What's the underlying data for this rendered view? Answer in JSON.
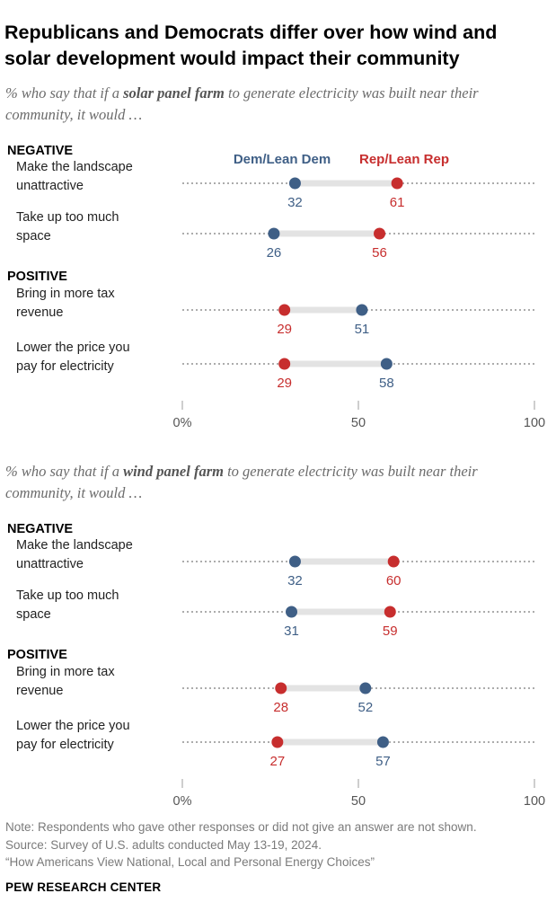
{
  "title": "Republicans and Democrats differ over how wind and solar development would impact their community",
  "colors": {
    "dem": "#3f5f86",
    "rep": "#c72e2e",
    "bar": "#e3e3e3",
    "dots": "#7a7a7a",
    "axis": "#bdbdbd",
    "label": "#222222"
  },
  "note_lines": [
    "Note: Respondents who gave other responses or did not give an answer are not shown.",
    "Source: Survey of U.S. adults conducted May 13-19, 2024.",
    "“How Americans View National, Local and Personal Energy Choices”"
  ],
  "footer": "PEW RESEARCH CENTER",
  "chart_data": [
    {
      "type": "dot",
      "subtitle_pre": "% who say that if a ",
      "subtitle_bold": "solar panel farm",
      "subtitle_post": " to generate electricity was built near their community, it would …",
      "legend": {
        "dem": "Dem/Lean Dem",
        "rep": "Rep/Lean Rep"
      },
      "xlim": [
        0,
        100
      ],
      "ticks": [
        "0%",
        "50",
        "100"
      ],
      "tick_values": [
        0,
        50,
        100
      ],
      "groups": [
        {
          "label": "NEGATIVE",
          "items": [
            {
              "lines": [
                "Make the landscape",
                "unattractive"
              ],
              "dem": 32,
              "rep": 61
            },
            {
              "lines": [
                "Take up too much",
                "space"
              ],
              "dem": 26,
              "rep": 56
            }
          ]
        },
        {
          "label": "POSITIVE",
          "items": [
            {
              "lines": [
                "Bring in more tax",
                "revenue"
              ],
              "dem": 51,
              "rep": 29
            },
            {
              "lines": [
                "Lower the price you",
                "pay for electricity"
              ],
              "dem": 58,
              "rep": 29
            }
          ]
        }
      ]
    },
    {
      "type": "dot",
      "subtitle_pre": "% who say that if a ",
      "subtitle_bold": "wind panel farm",
      "subtitle_post": " to generate electricity was built near their community, it would …",
      "xlim": [
        0,
        100
      ],
      "ticks": [
        "0%",
        "50",
        "100"
      ],
      "tick_values": [
        0,
        50,
        100
      ],
      "groups": [
        {
          "label": "NEGATIVE",
          "items": [
            {
              "lines": [
                "Make the landscape",
                "unattractive"
              ],
              "dem": 32,
              "rep": 60
            },
            {
              "lines": [
                "Take up too much",
                "space"
              ],
              "dem": 31,
              "rep": 59
            }
          ]
        },
        {
          "label": "POSITIVE",
          "items": [
            {
              "lines": [
                "Bring in more tax",
                "revenue"
              ],
              "dem": 52,
              "rep": 28
            },
            {
              "lines": [
                "Lower the price you",
                "pay for electricity"
              ],
              "dem": 57,
              "rep": 27
            }
          ]
        }
      ]
    }
  ]
}
